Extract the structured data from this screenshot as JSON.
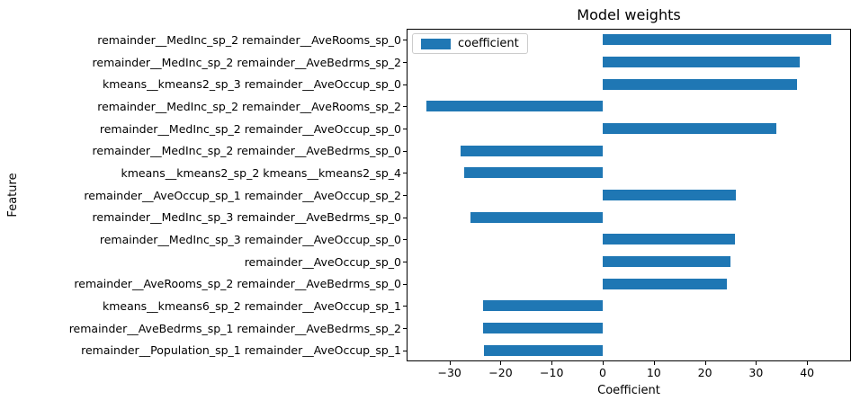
{
  "chart_data": {
    "type": "bar",
    "orientation": "horizontal",
    "title": "Model weights",
    "xlabel": "Coefficient",
    "ylabel": "Feature",
    "legend": {
      "label": "coefficient",
      "position": "upper left"
    },
    "bar_color": "#1f77b4",
    "grid": false,
    "categories": [
      "remainder__MedInc_sp_2 remainder__AveRooms_sp_0",
      "remainder__MedInc_sp_2 remainder__AveBedrms_sp_2",
      "kmeans__kmeans2_sp_3 remainder__AveOccup_sp_0",
      "remainder__MedInc_sp_2 remainder__AveRooms_sp_2",
      "remainder__MedInc_sp_2 remainder__AveOccup_sp_0",
      "remainder__MedInc_sp_2 remainder__AveBedrms_sp_0",
      "kmeans__kmeans2_sp_2 kmeans__kmeans2_sp_4",
      "remainder__AveOccup_sp_1 remainder__AveOccup_sp_2",
      "remainder__MedInc_sp_3 remainder__AveBedrms_sp_0",
      "remainder__MedInc_sp_3 remainder__AveOccup_sp_0",
      "remainder__AveOccup_sp_0",
      "remainder__AveRooms_sp_2 remainder__AveBedrms_sp_0",
      "kmeans__kmeans6_sp_2 remainder__AveOccup_sp_1",
      "remainder__AveBedrms_sp_1 remainder__AveBedrms_sp_2",
      "remainder__Population_sp_1 remainder__AveOccup_sp_1"
    ],
    "values": [
      44.8,
      38.6,
      38.0,
      -34.6,
      33.9,
      -27.8,
      -27.1,
      26.1,
      -25.9,
      25.8,
      25.0,
      24.3,
      -23.4,
      -23.5,
      -23.2
    ],
    "xlim": [
      -38.4,
      48.6
    ],
    "xticks": [
      -30,
      -20,
      -10,
      0,
      10,
      20,
      30,
      40
    ]
  }
}
